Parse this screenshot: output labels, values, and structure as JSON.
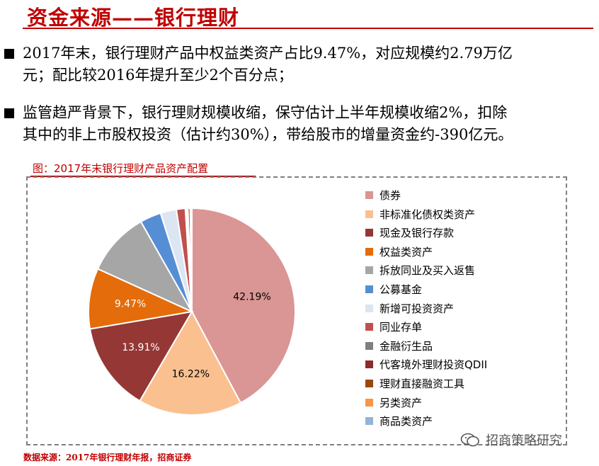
{
  "slide": {
    "title": "资金来源——银行理财",
    "bullets": [
      {
        "lines": [
          "2017年末，银行理财产品中权益类资产占比9.47%，对应规模约2.79万亿",
          "元；配比较2016年提升至少2个百分点；"
        ]
      },
      {
        "lines": [
          "监管趋严背景下，银行理财规模收缩，保守估计上半年规模收缩2%，扣除",
          "其中的非上市股权投资（估计约30%），带给股市的增量资金约-390亿元。"
        ]
      }
    ],
    "figure_caption": "图：2017年末银行理财产品资产配置",
    "source": "数据来源：2017年银行理财年报，招商证券",
    "watermark": "招商策略研究"
  },
  "chart_data": {
    "type": "pie",
    "title": "",
    "legend_position": "right",
    "start_angle_deg": 0,
    "direction": "clockwise",
    "slices": [
      {
        "label": "债券",
        "value": 42.19,
        "color": "#d99694",
        "value_label": "42.19%"
      },
      {
        "label": "非标准化债权类资产",
        "value": 16.22,
        "color": "#fac090",
        "value_label": "16.22%"
      },
      {
        "label": "现金及银行存款",
        "value": 13.91,
        "color": "#953735",
        "value_label": "13.91%"
      },
      {
        "label": "权益类资产",
        "value": 9.47,
        "color": "#e46c0a",
        "value_label": "9.47%"
      },
      {
        "label": "拆放同业及买入返售",
        "value": 10.0,
        "color": "#a6a6a6",
        "value_label": ""
      },
      {
        "label": "公募基金",
        "value": 3.3,
        "color": "#558ed5",
        "value_label": ""
      },
      {
        "label": "新增可投资资产",
        "value": 2.5,
        "color": "#dce6f2",
        "value_label": ""
      },
      {
        "label": "同业存单",
        "value": 1.4,
        "color": "#c0504d",
        "value_label": ""
      },
      {
        "label": "金融衍生品",
        "value": 0.2,
        "color": "#7f7f7f",
        "value_label": ""
      },
      {
        "label": "代客境外理财投资QDII",
        "value": 0.2,
        "color": "#8b2d2b",
        "value_label": ""
      },
      {
        "label": "理财直接融资工具",
        "value": 0.35,
        "color": "#984807",
        "value_label": ""
      },
      {
        "label": "另类资产",
        "value": 0.16,
        "color": "#f79646",
        "value_label": ""
      },
      {
        "label": "商品类资产",
        "value": 0.1,
        "color": "#95b3d7",
        "value_label": ""
      }
    ]
  }
}
